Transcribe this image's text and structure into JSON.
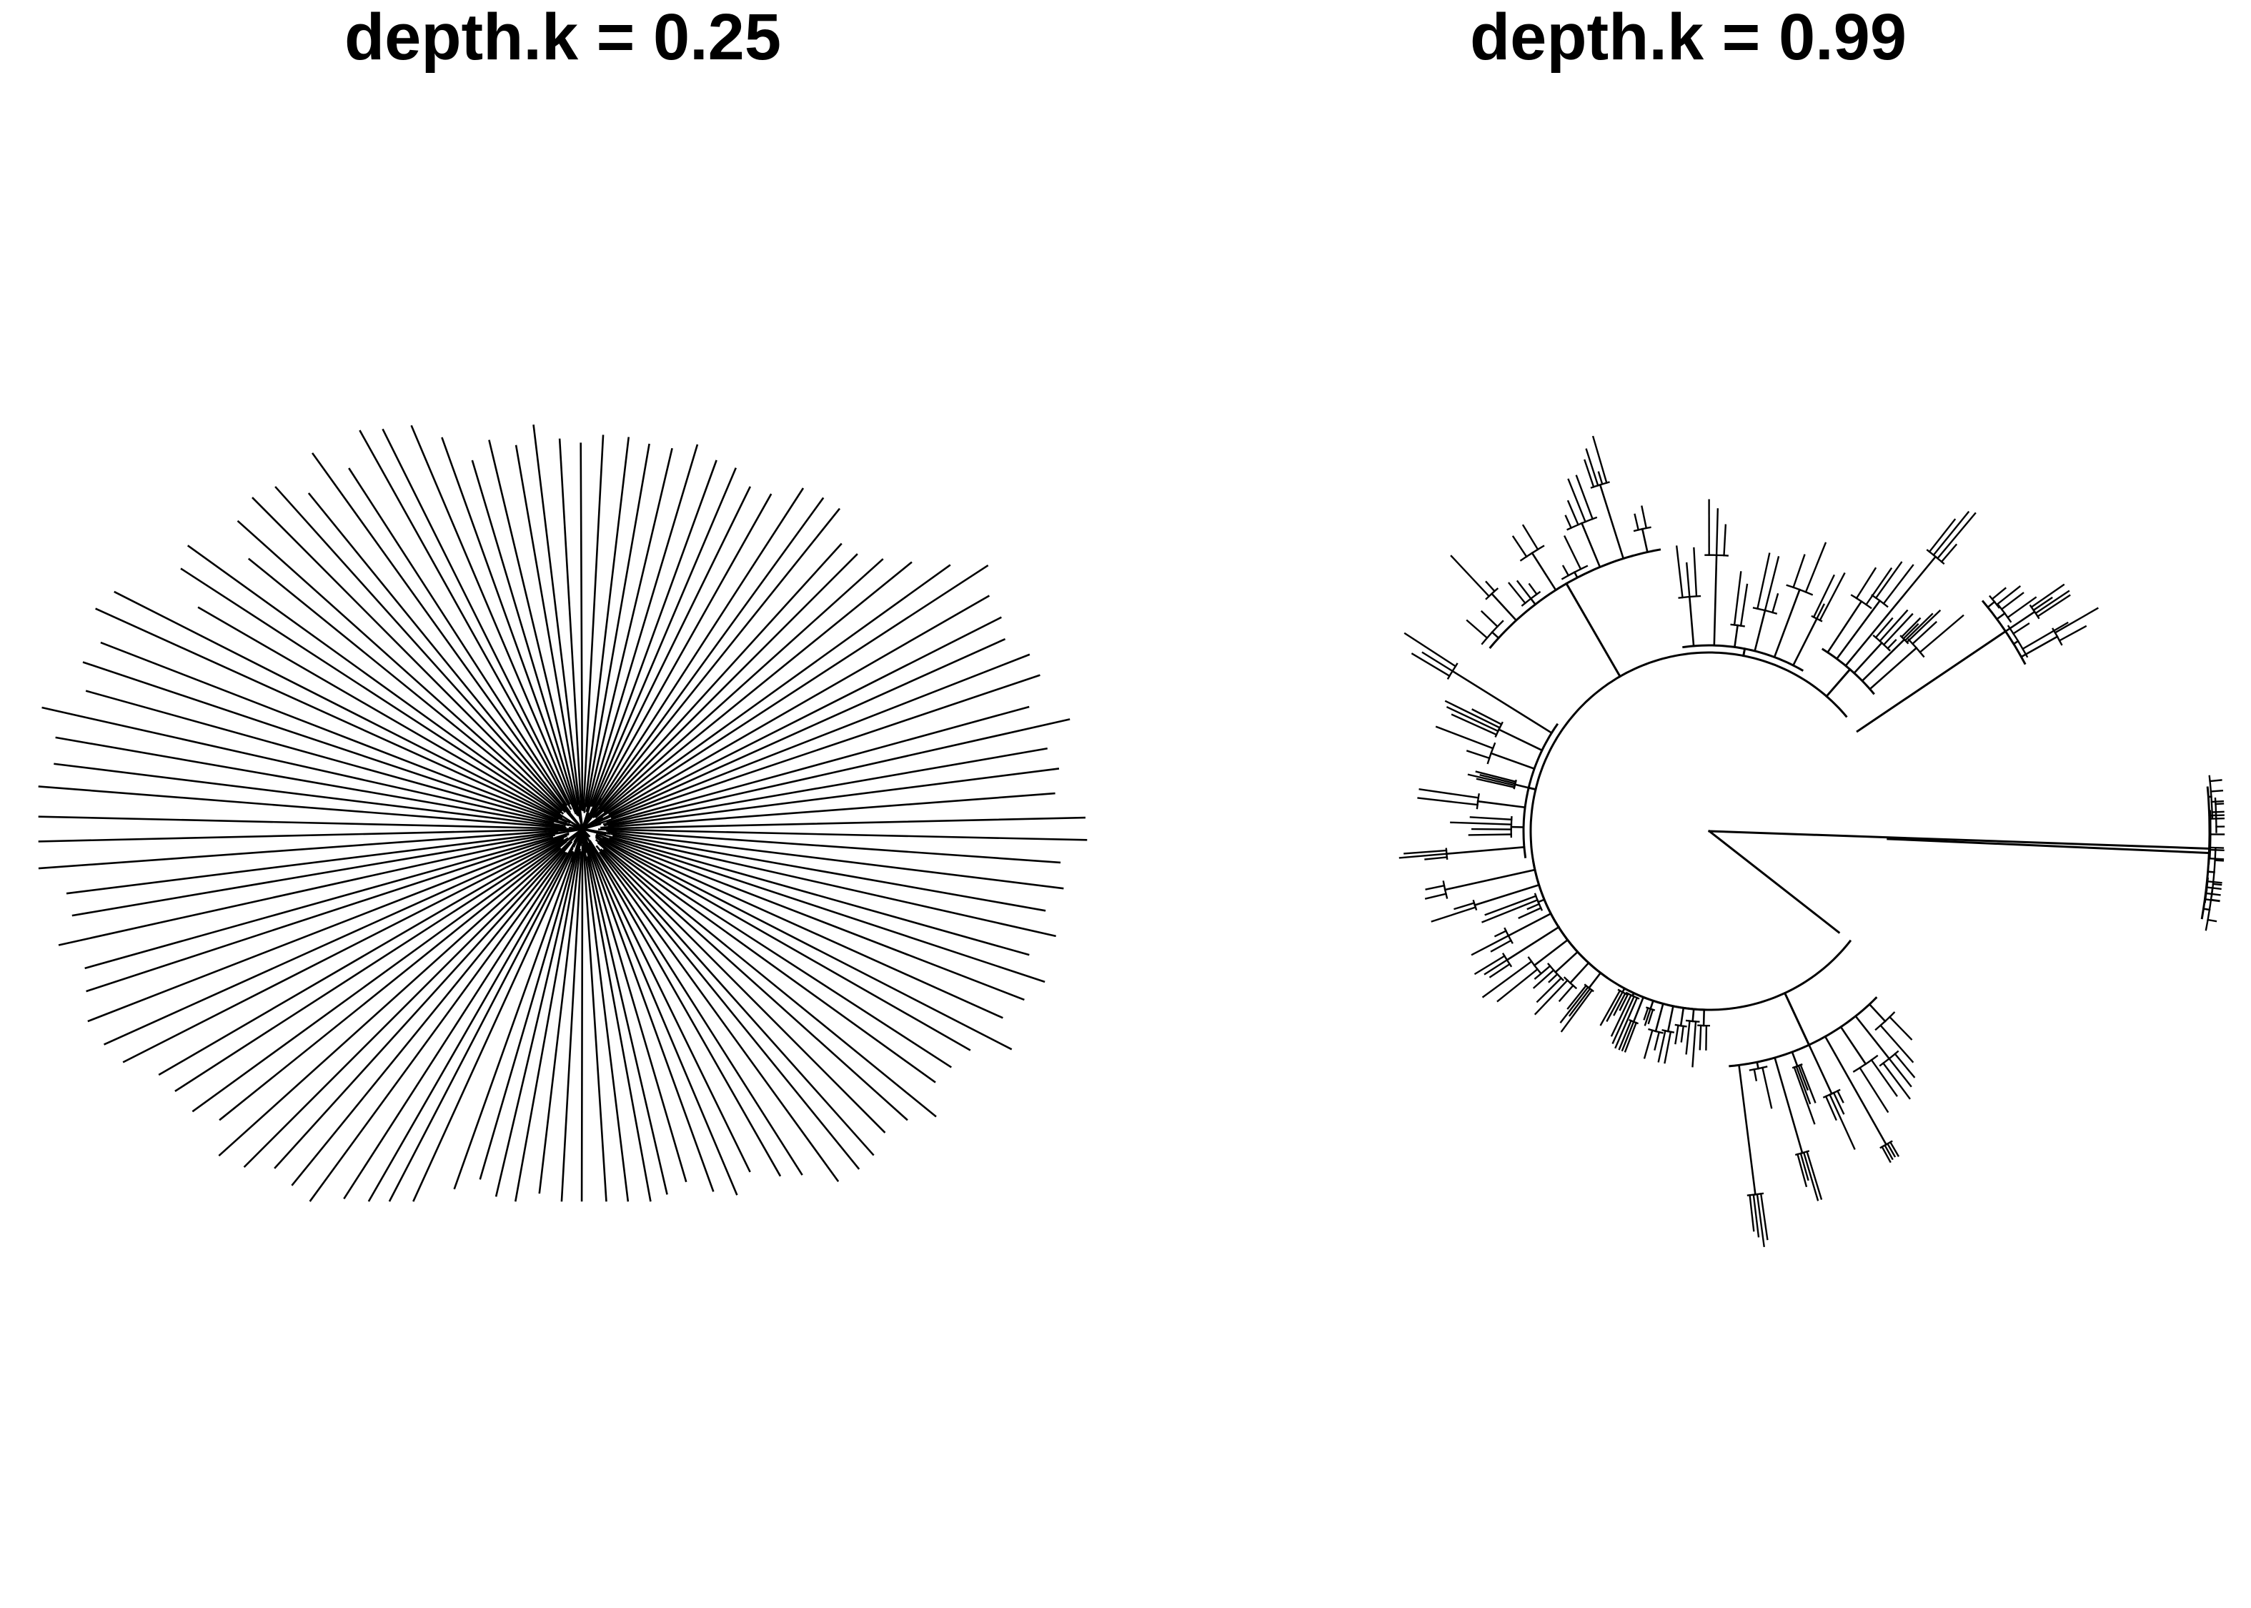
{
  "panels": [
    {
      "title": "depth.k = 0.25",
      "layout": "star"
    },
    {
      "title": "depth.k = 0.99",
      "layout": "circular"
    }
  ],
  "colors": {
    "stroke": "#000000",
    "background": "#ffffff"
  }
}
